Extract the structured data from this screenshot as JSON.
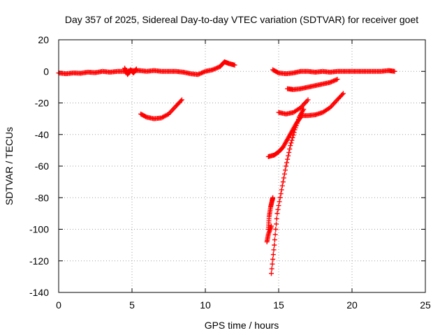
{
  "chart_data": {
    "type": "scatter",
    "title": "Day 357 of 2025, Sidereal Day-to-day VTEC variation (SDTVAR) for receiver goet",
    "xlabel": "GPS time / hours",
    "ylabel": "SDTVAR / TECUs",
    "xlim": [
      0,
      25
    ],
    "ylim": [
      -140,
      20
    ],
    "xticks": [
      0,
      5,
      10,
      15,
      20,
      25
    ],
    "yticks": [
      -140,
      -120,
      -100,
      -80,
      -60,
      -40,
      -20,
      0,
      20
    ],
    "grid": true,
    "marker": "+",
    "color": "#ff0000",
    "series": [
      {
        "points": [
          [
            0,
            -1
          ],
          [
            0.5,
            -1.5
          ],
          [
            1,
            -1
          ],
          [
            1.5,
            -1.2
          ],
          [
            2,
            -0.5
          ],
          [
            2.5,
            -0.8
          ],
          [
            3,
            0
          ],
          [
            3.5,
            -0.5
          ],
          [
            4,
            0
          ],
          [
            4.5,
            0
          ],
          [
            5,
            0.5
          ],
          [
            5.5,
            0.5
          ],
          [
            6,
            0
          ],
          [
            6.5,
            0.5
          ],
          [
            7,
            0
          ],
          [
            7.5,
            0
          ],
          [
            8,
            0
          ],
          [
            8.5,
            -0.5
          ],
          [
            9,
            -1.5
          ],
          [
            9.5,
            -2
          ],
          [
            10,
            0
          ],
          [
            10.5,
            1
          ],
          [
            11,
            3
          ],
          [
            11.3,
            6
          ],
          [
            11.6,
            5
          ],
          [
            12,
            4
          ]
        ]
      },
      {
        "points": [
          [
            4.5,
            2
          ],
          [
            4.7,
            -2
          ],
          [
            4.9,
            1
          ],
          [
            5.1,
            -1
          ],
          [
            5.3,
            1.5
          ]
        ]
      },
      {
        "points": [
          [
            5.6,
            -27
          ],
          [
            6,
            -29
          ],
          [
            6.5,
            -30
          ],
          [
            7,
            -29.5
          ],
          [
            7.5,
            -27
          ],
          [
            8,
            -22
          ],
          [
            8.4,
            -18
          ]
        ]
      },
      {
        "points": [
          [
            14.6,
            1
          ],
          [
            15,
            -1
          ],
          [
            15.5,
            -1.5
          ],
          [
            16,
            -1
          ],
          [
            16.5,
            0
          ],
          [
            17,
            0
          ],
          [
            17.5,
            -0.5
          ],
          [
            18,
            0
          ],
          [
            18.5,
            -0.5
          ],
          [
            19,
            0
          ],
          [
            19.5,
            0
          ],
          [
            20,
            0
          ],
          [
            20.5,
            0
          ],
          [
            21,
            0
          ],
          [
            21.5,
            0
          ],
          [
            22,
            0
          ],
          [
            22.5,
            0.5
          ],
          [
            22.9,
            0
          ]
        ]
      },
      {
        "points": [
          [
            15.6,
            -11
          ],
          [
            16,
            -11.5
          ],
          [
            16.5,
            -11
          ],
          [
            17,
            -10
          ],
          [
            17.5,
            -9
          ],
          [
            18,
            -8
          ],
          [
            18.5,
            -7
          ],
          [
            19,
            -5
          ]
        ]
      },
      {
        "points": [
          [
            15,
            -26
          ],
          [
            15.5,
            -27
          ],
          [
            16,
            -26
          ],
          [
            16.5,
            -23
          ],
          [
            17,
            -18
          ]
        ]
      },
      {
        "points": [
          [
            16.5,
            -28
          ],
          [
            17,
            -28
          ],
          [
            17.5,
            -27.5
          ],
          [
            18,
            -26
          ],
          [
            18.5,
            -23
          ],
          [
            19,
            -18
          ],
          [
            19.4,
            -14
          ]
        ]
      },
      {
        "points": [
          [
            14.3,
            -54
          ],
          [
            14.7,
            -53
          ],
          [
            15,
            -51
          ],
          [
            15.3,
            -48
          ],
          [
            15.6,
            -43
          ],
          [
            15.9,
            -38
          ],
          [
            16.2,
            -33
          ],
          [
            16.5,
            -29
          ]
        ]
      },
      {
        "points": [
          [
            14.5,
            -128
          ],
          [
            14.7,
            -110
          ],
          [
            14.9,
            -90
          ],
          [
            15.2,
            -75
          ],
          [
            15.5,
            -60
          ],
          [
            15.8,
            -47
          ],
          [
            16.1,
            -37
          ],
          [
            16.4,
            -29
          ],
          [
            16.7,
            -24
          ]
        ]
      },
      {
        "points": [
          [
            14.3,
            -100
          ],
          [
            14.35,
            -92
          ],
          [
            14.45,
            -86
          ],
          [
            14.55,
            -82
          ],
          [
            14.6,
            -80
          ]
        ]
      },
      {
        "points": [
          [
            14.2,
            -108
          ],
          [
            14.3,
            -103
          ],
          [
            14.5,
            -98
          ]
        ]
      }
    ]
  }
}
